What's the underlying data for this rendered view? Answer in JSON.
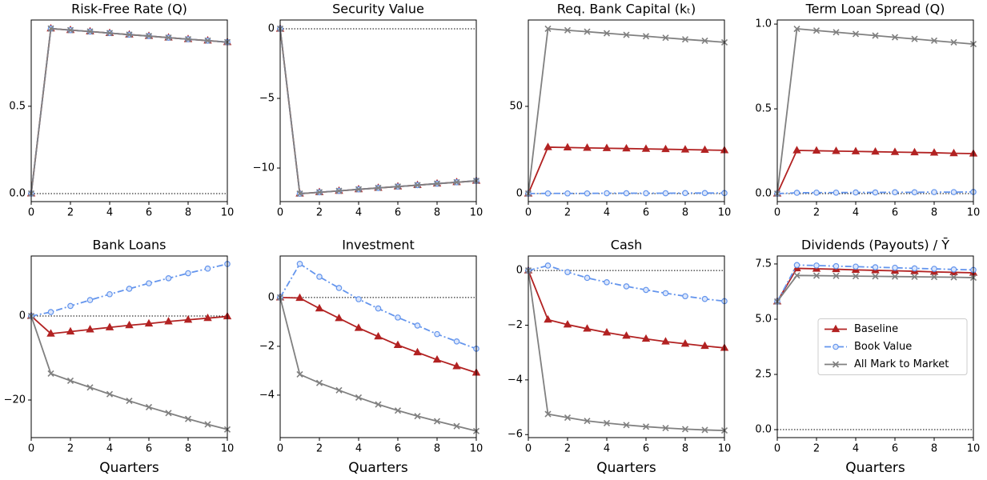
{
  "chart_data": [
    {
      "type": "line",
      "title": "Risk-Free Rate (Q)",
      "x": [
        0,
        1,
        2,
        3,
        4,
        5,
        6,
        7,
        8,
        9,
        10
      ],
      "xlim": [
        0,
        10
      ],
      "xticks": [
        0,
        2,
        4,
        6,
        8,
        10
      ],
      "ylim": [
        -0.046,
        0.994
      ],
      "yticks": [
        {
          "value": 0,
          "label": "0.0"
        },
        {
          "value": 0.5,
          "label": "0.5"
        }
      ],
      "zero_line": true,
      "series": [
        {
          "name": "Baseline",
          "color": "#b22222",
          "marker": "triangle",
          "dash": "solid",
          "values": [
            0,
            0.945,
            0.936,
            0.928,
            0.919,
            0.91,
            0.902,
            0.893,
            0.884,
            0.876,
            0.867
          ]
        },
        {
          "name": "Book Value",
          "color": "#6495ed",
          "marker": "circle",
          "dash": "dashdot",
          "values": [
            0,
            0.945,
            0.936,
            0.928,
            0.919,
            0.91,
            0.902,
            0.893,
            0.884,
            0.876,
            0.867
          ]
        },
        {
          "name": "All Mark to Market",
          "color": "#808080",
          "marker": "x",
          "dash": "solid",
          "values": [
            0,
            0.945,
            0.936,
            0.928,
            0.919,
            0.91,
            0.902,
            0.893,
            0.884,
            0.876,
            0.867
          ]
        }
      ]
    },
    {
      "type": "line",
      "title": "Security Value",
      "x": [
        0,
        1,
        2,
        3,
        4,
        5,
        6,
        7,
        8,
        9,
        10
      ],
      "xlim": [
        0,
        10
      ],
      "xticks": [
        0,
        2,
        4,
        6,
        8,
        10
      ],
      "ylim": [
        -12.41,
        0.63
      ],
      "yticks": [
        0,
        {
          "value": -5,
          "label": "−5"
        },
        {
          "value": -10,
          "label": "−10"
        }
      ],
      "zero_line": true,
      "series": [
        {
          "name": "Baseline",
          "color": "#b22222",
          "marker": "triangle",
          "dash": "solid",
          "values": [
            0,
            -11.84,
            -11.74,
            -11.64,
            -11.53,
            -11.43,
            -11.33,
            -11.23,
            -11.12,
            -11.02,
            -10.92
          ]
        },
        {
          "name": "Book Value",
          "color": "#6495ed",
          "marker": "circle",
          "dash": "dashdot",
          "values": [
            0,
            -11.84,
            -11.74,
            -11.64,
            -11.53,
            -11.43,
            -11.33,
            -11.23,
            -11.12,
            -11.02,
            -10.92
          ]
        },
        {
          "name": "All Mark to Market",
          "color": "#808080",
          "marker": "x",
          "dash": "solid",
          "values": [
            0,
            -11.84,
            -11.74,
            -11.64,
            -11.53,
            -11.43,
            -11.33,
            -11.23,
            -11.12,
            -11.02,
            -10.92
          ]
        }
      ]
    },
    {
      "type": "line",
      "title": "Req. Bank Capital (kₜ)",
      "x": [
        0,
        1,
        2,
        3,
        4,
        5,
        6,
        7,
        8,
        9,
        10
      ],
      "xlim": [
        0,
        10
      ],
      "xticks": [
        0,
        2,
        4,
        6,
        8,
        10
      ],
      "ylim": [
        -4.6,
        99.5
      ],
      "yticks": [
        0,
        50
      ],
      "zero_line": true,
      "series": [
        {
          "name": "Baseline",
          "color": "#b22222",
          "marker": "triangle",
          "dash": "solid",
          "values": [
            0,
            26.6,
            26.4,
            26.2,
            26.0,
            25.8,
            25.6,
            25.4,
            25.2,
            25.0,
            24.8
          ]
        },
        {
          "name": "Book Value",
          "color": "#6495ed",
          "marker": "circle",
          "dash": "dashdot",
          "values": [
            0,
            0.1,
            0.1,
            0.1,
            0.2,
            0.2,
            0.2,
            0.2,
            0.3,
            0.3,
            0.3
          ]
        },
        {
          "name": "All Mark to Market",
          "color": "#808080",
          "marker": "x",
          "dash": "solid",
          "values": [
            0,
            94.5,
            93.6,
            92.8,
            91.9,
            91.0,
            90.2,
            89.3,
            88.4,
            87.6,
            86.7
          ]
        }
      ]
    },
    {
      "type": "line",
      "title": "Term Loan Spread (Q)",
      "x": [
        0,
        1,
        2,
        3,
        4,
        5,
        6,
        7,
        8,
        9,
        10
      ],
      "xlim": [
        0,
        10
      ],
      "xticks": [
        0,
        2,
        4,
        6,
        8,
        10
      ],
      "ylim": [
        -0.047,
        1.024
      ],
      "yticks": [
        {
          "value": 0,
          "label": "0.0"
        },
        {
          "value": 0.5,
          "label": "0.5"
        },
        {
          "value": 1,
          "label": "1.0"
        }
      ],
      "zero_line": true,
      "series": [
        {
          "name": "Baseline",
          "color": "#b22222",
          "marker": "triangle",
          "dash": "solid",
          "values": [
            0,
            0.255,
            0.253,
            0.251,
            0.249,
            0.247,
            0.245,
            0.243,
            0.241,
            0.238,
            0.236
          ]
        },
        {
          "name": "Book Value",
          "color": "#6495ed",
          "marker": "circle",
          "dash": "dashdot",
          "values": [
            0,
            0.005,
            0.006,
            0.006,
            0.007,
            0.007,
            0.008,
            0.008,
            0.009,
            0.009,
            0.01
          ]
        },
        {
          "name": "All Mark to Market",
          "color": "#808080",
          "marker": "x",
          "dash": "solid",
          "values": [
            0,
            0.972,
            0.962,
            0.952,
            0.942,
            0.932,
            0.922,
            0.912,
            0.902,
            0.892,
            0.882
          ]
        }
      ]
    },
    {
      "type": "line",
      "title": "Bank Loans",
      "x": [
        0,
        1,
        2,
        3,
        4,
        5,
        6,
        7,
        8,
        9,
        10
      ],
      "xlim": [
        0,
        10
      ],
      "xticks": [
        0,
        2,
        4,
        6,
        8,
        10
      ],
      "xlabel": "Quarters",
      "ylim": [
        -28.95,
        14.3
      ],
      "yticks": [
        0,
        {
          "value": -20,
          "label": "−20"
        }
      ],
      "zero_line": true,
      "series": [
        {
          "name": "Baseline",
          "color": "#b22222",
          "marker": "triangle",
          "dash": "solid",
          "values": [
            0,
            -4.2,
            -3.7,
            -3.2,
            -2.7,
            -2.2,
            -1.8,
            -1.3,
            -0.9,
            -0.5,
            -0.1
          ]
        },
        {
          "name": "Book Value",
          "color": "#6495ed",
          "marker": "circle",
          "dash": "dashdot",
          "values": [
            0,
            0.95,
            2.4,
            3.8,
            5.2,
            6.5,
            7.8,
            9.0,
            10.2,
            11.3,
            12.4
          ]
        },
        {
          "name": "All Mark to Market",
          "color": "#808080",
          "marker": "x",
          "dash": "solid",
          "values": [
            0,
            -13.7,
            -15.4,
            -17.0,
            -18.6,
            -20.2,
            -21.7,
            -23.1,
            -24.5,
            -25.8,
            -27.0
          ]
        }
      ]
    },
    {
      "type": "line",
      "title": "Investment",
      "x": [
        0,
        1,
        2,
        3,
        4,
        5,
        6,
        7,
        8,
        9,
        10
      ],
      "xlim": [
        0,
        10
      ],
      "xticks": [
        0,
        2,
        4,
        6,
        8,
        10
      ],
      "xlabel": "Quarters",
      "ylim": [
        -5.74,
        1.7
      ],
      "yticks": [
        0,
        {
          "value": -2,
          "label": "−2"
        },
        {
          "value": -4,
          "label": "−4"
        }
      ],
      "zero_line": true,
      "series": [
        {
          "name": "Baseline",
          "color": "#b22222",
          "marker": "triangle",
          "dash": "solid",
          "values": [
            0,
            -0.02,
            -0.45,
            -0.85,
            -1.25,
            -1.6,
            -1.95,
            -2.25,
            -2.55,
            -2.82,
            -3.08
          ]
        },
        {
          "name": "Book Value",
          "color": "#6495ed",
          "marker": "circle",
          "dash": "dashdot",
          "values": [
            0,
            1.38,
            0.85,
            0.39,
            -0.07,
            -0.45,
            -0.82,
            -1.15,
            -1.5,
            -1.8,
            -2.1
          ]
        },
        {
          "name": "All Mark to Market",
          "color": "#808080",
          "marker": "x",
          "dash": "solid",
          "values": [
            0,
            -3.15,
            -3.5,
            -3.8,
            -4.1,
            -4.38,
            -4.63,
            -4.86,
            -5.07,
            -5.27,
            -5.47
          ]
        }
      ]
    },
    {
      "type": "line",
      "title": "Cash",
      "x": [
        0,
        1,
        2,
        3,
        4,
        5,
        6,
        7,
        8,
        9,
        10
      ],
      "xlim": [
        0,
        10
      ],
      "xticks": [
        0,
        2,
        4,
        6,
        8,
        10
      ],
      "xlabel": "Quarters",
      "ylim": [
        -6.11,
        0.53
      ],
      "yticks": [
        0,
        {
          "value": -2,
          "label": "−2"
        },
        {
          "value": -4,
          "label": "−4"
        },
        {
          "value": -6,
          "label": "−6"
        }
      ],
      "zero_line": true,
      "series": [
        {
          "name": "Baseline",
          "color": "#b22222",
          "marker": "triangle",
          "dash": "solid",
          "values": [
            0,
            -1.8,
            -1.98,
            -2.13,
            -2.27,
            -2.39,
            -2.5,
            -2.6,
            -2.68,
            -2.76,
            -2.83
          ]
        },
        {
          "name": "Book Value",
          "color": "#6495ed",
          "marker": "circle",
          "dash": "dashdot",
          "values": [
            0,
            0.18,
            -0.06,
            -0.27,
            -0.43,
            -0.58,
            -0.71,
            -0.83,
            -0.94,
            -1.04,
            -1.12
          ]
        },
        {
          "name": "All Mark to Market",
          "color": "#808080",
          "marker": "x",
          "dash": "solid",
          "values": [
            0,
            -5.25,
            -5.38,
            -5.5,
            -5.58,
            -5.65,
            -5.71,
            -5.76,
            -5.8,
            -5.83,
            -5.85
          ]
        }
      ]
    },
    {
      "type": "line",
      "title": "Dividends (Payouts) / Ȳ",
      "x": [
        0,
        1,
        2,
        3,
        4,
        5,
        6,
        7,
        8,
        9,
        10
      ],
      "xlim": [
        0,
        10
      ],
      "xticks": [
        0,
        2,
        4,
        6,
        8,
        10
      ],
      "xlabel": "Quarters",
      "ylim": [
        -0.36,
        7.86
      ],
      "yticks": [
        {
          "value": 0,
          "label": "0.0"
        },
        {
          "value": 2.5,
          "label": "2.5"
        },
        {
          "value": 5,
          "label": "5.0"
        },
        {
          "value": 7.5,
          "label": "7.5"
        }
      ],
      "zero_line": true,
      "legend": "center right",
      "series": [
        {
          "name": "Baseline",
          "color": "#b22222",
          "marker": "triangle",
          "dash": "solid",
          "values": [
            5.8,
            7.3,
            7.28,
            7.26,
            7.23,
            7.21,
            7.19,
            7.17,
            7.14,
            7.12,
            7.1
          ]
        },
        {
          "name": "Book Value",
          "color": "#6495ed",
          "marker": "circle",
          "dash": "dashdot",
          "values": [
            5.8,
            7.45,
            7.43,
            7.4,
            7.38,
            7.35,
            7.33,
            7.3,
            7.28,
            7.25,
            7.23
          ]
        },
        {
          "name": "All Mark to Market",
          "color": "#808080",
          "marker": "x",
          "dash": "solid",
          "values": [
            5.8,
            6.98,
            6.97,
            6.96,
            6.95,
            6.94,
            6.93,
            6.92,
            6.91,
            6.9,
            6.88
          ]
        }
      ]
    }
  ]
}
